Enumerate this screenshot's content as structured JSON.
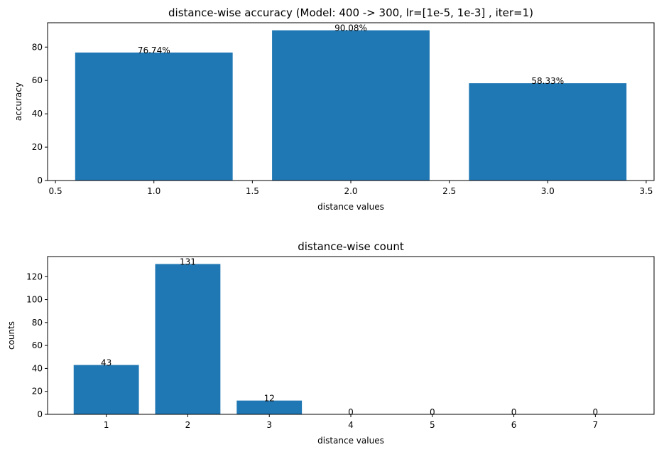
{
  "chart_data": [
    {
      "type": "bar",
      "title": "distance-wise accuracy (Model: 400 -> 300, lr=[1e-5, 1e-3] , iter=1)",
      "xlabel": "distance values",
      "ylabel": "accuracy",
      "x": [
        1,
        2,
        3
      ],
      "values": [
        76.74,
        90.08,
        58.33
      ],
      "bar_labels": [
        "76.74%",
        "90.08%",
        "58.33%"
      ],
      "bar_width": 0.8,
      "xlim": [
        0.46,
        3.54
      ],
      "ylim": [
        0,
        94.6
      ],
      "xticks": [
        0.5,
        1.0,
        1.5,
        2.0,
        2.5,
        3.0,
        3.5
      ],
      "xtick_labels": [
        "0.5",
        "1.0",
        "1.5",
        "2.0",
        "2.5",
        "3.0",
        "3.5"
      ],
      "yticks": [
        0,
        20,
        40,
        60,
        80
      ],
      "ytick_labels": [
        "0",
        "20",
        "40",
        "60",
        "80"
      ],
      "color": "#1f77b4",
      "grid": false
    },
    {
      "type": "bar",
      "title": "distance-wise count",
      "xlabel": "distance values",
      "ylabel": "counts",
      "x": [
        1,
        2,
        3,
        4,
        5,
        6,
        7
      ],
      "values": [
        43,
        131,
        12,
        0,
        0,
        0,
        0
      ],
      "bar_labels": [
        "43",
        "131",
        "12",
        "0",
        "0",
        "0",
        "0"
      ],
      "bar_width": 0.8,
      "xlim": [
        0.28,
        7.72
      ],
      "ylim": [
        0,
        137.5
      ],
      "xticks": [
        1,
        2,
        3,
        4,
        5,
        6,
        7
      ],
      "xtick_labels": [
        "1",
        "2",
        "3",
        "4",
        "5",
        "6",
        "7"
      ],
      "yticks": [
        0,
        20,
        40,
        60,
        80,
        100,
        120
      ],
      "ytick_labels": [
        "0",
        "20",
        "40",
        "60",
        "80",
        "100",
        "120"
      ],
      "color": "#1f77b4",
      "grid": false
    }
  ]
}
